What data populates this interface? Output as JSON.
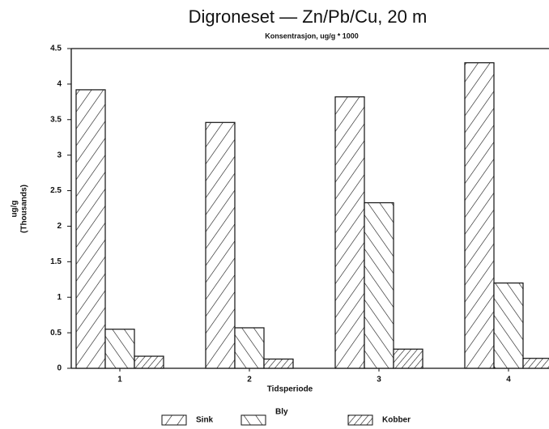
{
  "chart_data": {
    "type": "bar",
    "title": "Digroneset — Zn/Pb/Cu, 20 m",
    "subtitle": "Konsentrasjon, ug/g * 1000",
    "y_label": [
      "ug/g",
      "(Thousands)"
    ],
    "x_label": "Tidsperiode",
    "categories": [
      "1",
      "2",
      "3",
      "4"
    ],
    "series": [
      {
        "name": "Sink",
        "values": [
          3.92,
          3.46,
          3.82,
          4.3
        ]
      },
      {
        "name": "Bly",
        "values": [
          0.55,
          0.57,
          2.33,
          1.2
        ]
      },
      {
        "name": "Kobber",
        "values": [
          0.17,
          0.13,
          0.27,
          0.14
        ]
      }
    ],
    "ylim": [
      0,
      4.5
    ],
    "yticks": [
      0,
      0.5,
      1,
      1.5,
      2,
      2.5,
      3,
      3.5,
      4,
      4.5
    ]
  }
}
